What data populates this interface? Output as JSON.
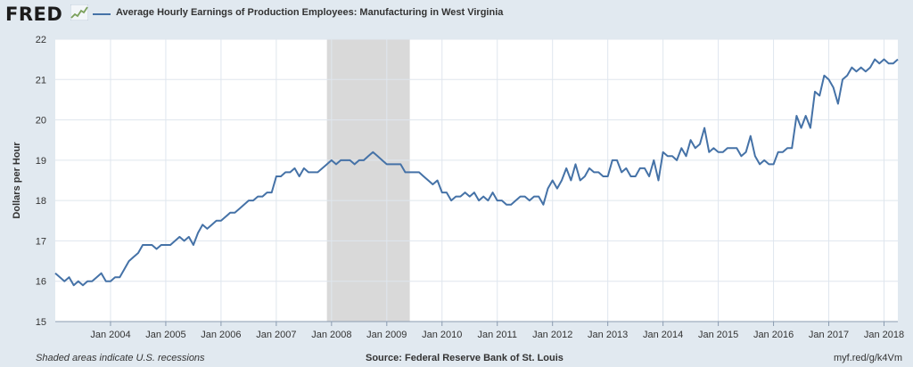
{
  "header": {
    "logo_text": "FRED",
    "logo_icon": "line-graph-icon",
    "series_title": "Average Hourly Earnings of Production Employees: Manufacturing in West Virginia"
  },
  "footer": {
    "note": "Shaded areas indicate U.S. recessions",
    "source": "Source: Federal Reserve Bank of St. Louis",
    "link": "myf.red/g/k4Vm"
  },
  "colors": {
    "line": "#4572a7",
    "recession": "#d9d9d9",
    "plot_bg": "#ffffff",
    "page_bg": "#e1e9f0",
    "grid": "#dfe6ee"
  },
  "chart_data": {
    "type": "line",
    "title": "Average Hourly Earnings of Production Employees: Manufacturing in West Virginia",
    "ylabel": "Dollars per Hour",
    "xlabel": "",
    "ylim": [
      15,
      22
    ],
    "yticks": [
      15,
      16,
      17,
      18,
      19,
      20,
      21,
      22
    ],
    "xlim": [
      "2003-01",
      "2018-04"
    ],
    "xticks": [
      {
        "x": "2004-01",
        "label": "Jan 2004"
      },
      {
        "x": "2005-01",
        "label": "Jan 2005"
      },
      {
        "x": "2006-01",
        "label": "Jan 2006"
      },
      {
        "x": "2007-01",
        "label": "Jan 2007"
      },
      {
        "x": "2008-01",
        "label": "Jan 2008"
      },
      {
        "x": "2009-01",
        "label": "Jan 2009"
      },
      {
        "x": "2010-01",
        "label": "Jan 2010"
      },
      {
        "x": "2011-01",
        "label": "Jan 2011"
      },
      {
        "x": "2012-01",
        "label": "Jan 2012"
      },
      {
        "x": "2013-01",
        "label": "Jan 2013"
      },
      {
        "x": "2014-01",
        "label": "Jan 2014"
      },
      {
        "x": "2015-01",
        "label": "Jan 2015"
      },
      {
        "x": "2016-01",
        "label": "Jan 2016"
      },
      {
        "x": "2017-01",
        "label": "Jan 2017"
      },
      {
        "x": "2018-01",
        "label": "Jan 2018"
      }
    ],
    "grid": true,
    "legend_position": "top-left",
    "recessions": [
      {
        "start": "2007-12",
        "end": "2009-06"
      }
    ],
    "series": [
      {
        "name": "Average Hourly Earnings of Production Employees: Manufacturing in West Virginia",
        "x": [
          "2003-01",
          "2003-02",
          "2003-03",
          "2003-04",
          "2003-05",
          "2003-06",
          "2003-07",
          "2003-08",
          "2003-09",
          "2003-10",
          "2003-11",
          "2003-12",
          "2004-01",
          "2004-02",
          "2004-03",
          "2004-04",
          "2004-05",
          "2004-06",
          "2004-07",
          "2004-08",
          "2004-09",
          "2004-10",
          "2004-11",
          "2004-12",
          "2005-01",
          "2005-02",
          "2005-03",
          "2005-04",
          "2005-05",
          "2005-06",
          "2005-07",
          "2005-08",
          "2005-09",
          "2005-10",
          "2005-11",
          "2005-12",
          "2006-01",
          "2006-02",
          "2006-03",
          "2006-04",
          "2006-05",
          "2006-06",
          "2006-07",
          "2006-08",
          "2006-09",
          "2006-10",
          "2006-11",
          "2006-12",
          "2007-01",
          "2007-02",
          "2007-03",
          "2007-04",
          "2007-05",
          "2007-06",
          "2007-07",
          "2007-08",
          "2007-09",
          "2007-10",
          "2007-11",
          "2007-12",
          "2008-01",
          "2008-02",
          "2008-03",
          "2008-04",
          "2008-05",
          "2008-06",
          "2008-07",
          "2008-08",
          "2008-09",
          "2008-10",
          "2008-11",
          "2008-12",
          "2009-01",
          "2009-02",
          "2009-03",
          "2009-04",
          "2009-05",
          "2009-06",
          "2009-07",
          "2009-08",
          "2009-09",
          "2009-10",
          "2009-11",
          "2009-12",
          "2010-01",
          "2010-02",
          "2010-03",
          "2010-04",
          "2010-05",
          "2010-06",
          "2010-07",
          "2010-08",
          "2010-09",
          "2010-10",
          "2010-11",
          "2010-12",
          "2011-01",
          "2011-02",
          "2011-03",
          "2011-04",
          "2011-05",
          "2011-06",
          "2011-07",
          "2011-08",
          "2011-09",
          "2011-10",
          "2011-11",
          "2011-12",
          "2012-01",
          "2012-02",
          "2012-03",
          "2012-04",
          "2012-05",
          "2012-06",
          "2012-07",
          "2012-08",
          "2012-09",
          "2012-10",
          "2012-11",
          "2012-12",
          "2013-01",
          "2013-02",
          "2013-03",
          "2013-04",
          "2013-05",
          "2013-06",
          "2013-07",
          "2013-08",
          "2013-09",
          "2013-10",
          "2013-11",
          "2013-12",
          "2014-01",
          "2014-02",
          "2014-03",
          "2014-04",
          "2014-05",
          "2014-06",
          "2014-07",
          "2014-08",
          "2014-09",
          "2014-10",
          "2014-11",
          "2014-12",
          "2015-01",
          "2015-02",
          "2015-03",
          "2015-04",
          "2015-05",
          "2015-06",
          "2015-07",
          "2015-08",
          "2015-09",
          "2015-10",
          "2015-11",
          "2015-12",
          "2016-01",
          "2016-02",
          "2016-03",
          "2016-04",
          "2016-05",
          "2016-06",
          "2016-07",
          "2016-08",
          "2016-09",
          "2016-10",
          "2016-11",
          "2016-12",
          "2017-01",
          "2017-02",
          "2017-03",
          "2017-04",
          "2017-05",
          "2017-06",
          "2017-07",
          "2017-08",
          "2017-09",
          "2017-10",
          "2017-11",
          "2017-12",
          "2018-01",
          "2018-02",
          "2018-03",
          "2018-04"
        ],
        "values": [
          16.2,
          16.1,
          16.0,
          16.1,
          15.9,
          16.0,
          15.9,
          16.0,
          16.0,
          16.1,
          16.2,
          16.0,
          16.0,
          16.1,
          16.1,
          16.3,
          16.5,
          16.6,
          16.7,
          16.9,
          16.9,
          16.9,
          16.8,
          16.9,
          16.9,
          16.9,
          17.0,
          17.1,
          17.0,
          17.1,
          16.9,
          17.2,
          17.4,
          17.3,
          17.4,
          17.5,
          17.5,
          17.6,
          17.7,
          17.7,
          17.8,
          17.9,
          18.0,
          18.0,
          18.1,
          18.1,
          18.2,
          18.2,
          18.6,
          18.6,
          18.7,
          18.7,
          18.8,
          18.6,
          18.8,
          18.7,
          18.7,
          18.7,
          18.8,
          18.9,
          19.0,
          18.9,
          19.0,
          19.0,
          19.0,
          18.9,
          19.0,
          19.0,
          19.1,
          19.2,
          19.1,
          19.0,
          18.9,
          18.9,
          18.9,
          18.9,
          18.7,
          18.7,
          18.7,
          18.7,
          18.6,
          18.5,
          18.4,
          18.5,
          18.2,
          18.2,
          18.0,
          18.1,
          18.1,
          18.2,
          18.1,
          18.2,
          18.0,
          18.1,
          18.0,
          18.2,
          18.0,
          18.0,
          17.9,
          17.9,
          18.0,
          18.1,
          18.1,
          18.0,
          18.1,
          18.1,
          17.9,
          18.3,
          18.5,
          18.3,
          18.5,
          18.8,
          18.5,
          18.9,
          18.5,
          18.6,
          18.8,
          18.7,
          18.7,
          18.6,
          18.6,
          19.0,
          19.0,
          18.7,
          18.8,
          18.6,
          18.6,
          18.8,
          18.8,
          18.6,
          19.0,
          18.5,
          19.2,
          19.1,
          19.1,
          19.0,
          19.3,
          19.1,
          19.5,
          19.3,
          19.4,
          19.8,
          19.2,
          19.3,
          19.2,
          19.2,
          19.3,
          19.3,
          19.3,
          19.1,
          19.2,
          19.6,
          19.1,
          18.9,
          19.0,
          18.9,
          18.9,
          19.2,
          19.2,
          19.3,
          19.3,
          20.1,
          19.8,
          20.1,
          19.8,
          20.7,
          20.6,
          21.1,
          21.0,
          20.8,
          20.4,
          21.0,
          21.1,
          21.3,
          21.2,
          21.3,
          21.2,
          21.3,
          21.5,
          21.4,
          21.5,
          21.4,
          21.4,
          21.5
        ]
      }
    ]
  }
}
